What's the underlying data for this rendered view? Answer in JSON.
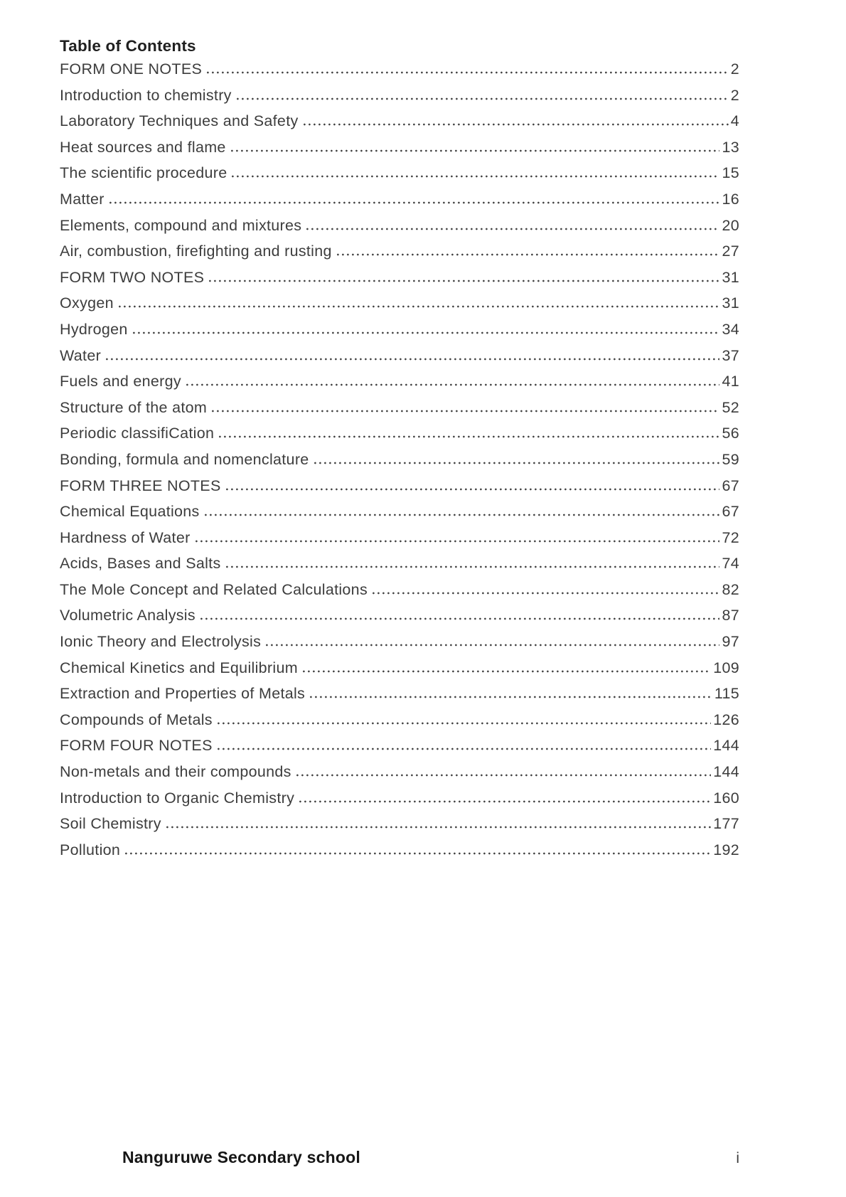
{
  "colors": {
    "background": "#ffffff",
    "text": "#3d3d3d",
    "heading": "#1f1f1f",
    "footer": "#161616",
    "dot_leader": "#3f3f3f"
  },
  "page": {
    "heading": "Table of Contents",
    "footer": {
      "school_name": "Nanguruwe Secondary school",
      "page_number": "i"
    }
  },
  "toc": {
    "entries": [
      {
        "title": "FORM ONE NOTES",
        "page": "2"
      },
      {
        "title": "Introduction to chemistry",
        "page": "2"
      },
      {
        "title": "Laboratory Techniques and Safety",
        "page": "4"
      },
      {
        "title": "Heat sources and flame",
        "page": "13"
      },
      {
        "title": "The scientific procedure",
        "page": "15"
      },
      {
        "title": "Matter",
        "page": "16"
      },
      {
        "title": "Elements, compound and mixtures",
        "page": "20"
      },
      {
        "title": "Air, combustion, firefighting and rusting",
        "page": "27"
      },
      {
        "title": "FORM TWO NOTES",
        "page": "31"
      },
      {
        "title": "Oxygen",
        "page": "31"
      },
      {
        "title": "Hydrogen",
        "page": "34"
      },
      {
        "title": "Water",
        "page": "37"
      },
      {
        "title": "Fuels and energy",
        "page": "41"
      },
      {
        "title": "Structure of the atom",
        "page": "52"
      },
      {
        "title": "Periodic classifiCation",
        "page": "56"
      },
      {
        "title": "Bonding, formula and nomenclature",
        "page": "59"
      },
      {
        "title": "FORM THREE NOTES",
        "page": "67"
      },
      {
        "title": "Chemical Equations",
        "page": "67"
      },
      {
        "title": "Hardness of Water",
        "page": "72"
      },
      {
        "title": "Acids, Bases and Salts",
        "page": "74"
      },
      {
        "title": "The Mole Concept and Related Calculations",
        "page": "82"
      },
      {
        "title": "Volumetric Analysis",
        "page": "87"
      },
      {
        "title": "Ionic Theory and Electrolysis",
        "page": "97"
      },
      {
        "title": "Chemical Kinetics and Equilibrium",
        "page": "109"
      },
      {
        "title": "Extraction and Properties of Metals",
        "page": "115"
      },
      {
        "title": "Compounds of Metals",
        "page": "126"
      },
      {
        "title": "FORM FOUR NOTES",
        "page": "144"
      },
      {
        "title": "Non-metals and their compounds",
        "page": "144"
      },
      {
        "title": "Introduction to Organic Chemistry",
        "page": "160"
      },
      {
        "title": "Soil Chemistry",
        "page": "177"
      },
      {
        "title": "Pollution",
        "page": "192"
      }
    ]
  }
}
